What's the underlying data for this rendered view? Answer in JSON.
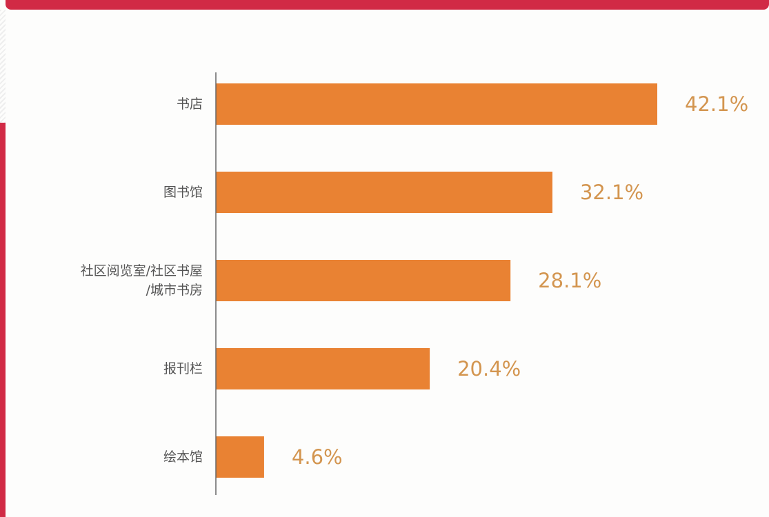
{
  "colors": {
    "frame": "#d12a45",
    "bar": "#e98233",
    "value_label": "#d3954f",
    "axis": "#666666"
  },
  "chart_data": {
    "type": "bar",
    "orientation": "horizontal",
    "title": "",
    "xlabel": "",
    "ylabel": "",
    "categories": [
      "书店",
      "图书馆",
      "社区阅览室/社区书屋/城市书房",
      "报刊栏",
      "绘本馆"
    ],
    "category_label_lines": [
      [
        "书店"
      ],
      [
        "图书馆"
      ],
      [
        "社区阅览室/社区书屋",
        "/城市书房"
      ],
      [
        "报刊栏"
      ],
      [
        "绘本馆"
      ]
    ],
    "values": [
      42.1,
      32.1,
      28.1,
      20.4,
      4.6
    ],
    "value_labels": [
      "42.1%",
      "32.1%",
      "28.1%",
      "20.4%",
      "4.6%"
    ],
    "unit": "%",
    "xlim": [
      0,
      42.1
    ],
    "grid": false,
    "legend": "none"
  }
}
